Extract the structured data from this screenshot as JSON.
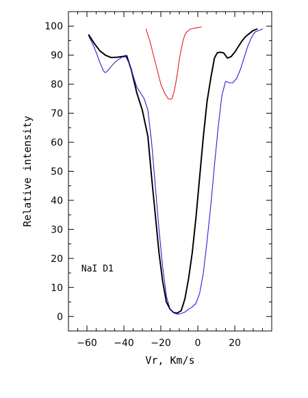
{
  "chart_data": {
    "type": "line",
    "title": "",
    "xlabel": "Vr, Km/s",
    "ylabel": "Relative intensity",
    "annotation": "NaI D1",
    "xlim": [
      -70,
      40
    ],
    "ylim": [
      -5,
      105
    ],
    "x_ticks": [
      -60,
      -40,
      -20,
      0,
      20
    ],
    "y_ticks": [
      0,
      10,
      20,
      30,
      40,
      50,
      60,
      70,
      80,
      90,
      100
    ],
    "grid": false,
    "series": [
      {
        "color": "#000000",
        "x": [
          -59,
          -56,
          -53,
          -50,
          -47,
          -44,
          -41,
          -38.5,
          -36,
          -33,
          -30,
          -27,
          -25,
          -23,
          -21,
          -19,
          -17,
          -15,
          -13,
          -11,
          -9,
          -7,
          -5,
          -3,
          -1,
          1,
          3,
          5,
          7,
          9,
          10.5,
          12,
          14,
          16,
          18,
          20,
          22,
          24,
          26,
          28,
          30,
          32
        ],
        "y": [
          97,
          94,
          91.5,
          90,
          89.2,
          89.3,
          89.5,
          89.8,
          85,
          77,
          71,
          62,
          48,
          35,
          22,
          12,
          5,
          2.5,
          1.3,
          1.2,
          2,
          6,
          13,
          22,
          34,
          48,
          62,
          74,
          82,
          89,
          90.8,
          91,
          90.8,
          89,
          89.5,
          91,
          93,
          95,
          96.5,
          97.5,
          98.5,
          99
        ]
      },
      {
        "color": "#1f1fd6",
        "x": [
          -59,
          -57,
          -55,
          -53,
          -51,
          -50,
          -49,
          -47,
          -45,
          -43,
          -41,
          -39,
          -37,
          -35,
          -33,
          -31,
          -29,
          -27,
          -25,
          -23,
          -21,
          -19,
          -17,
          -15,
          -13,
          -11,
          -9,
          -7,
          -5,
          -3,
          -1,
          1,
          3,
          5,
          7,
          9,
          11,
          13,
          15,
          17,
          19,
          21,
          23,
          25,
          27,
          29,
          31,
          33,
          35
        ],
        "y": [
          96.5,
          94,
          91,
          87.5,
          84.5,
          84,
          84.5,
          86,
          87.5,
          88.5,
          89.3,
          89.5,
          87,
          83,
          79,
          77,
          75,
          71,
          60,
          45,
          30,
          17,
          7,
          2.5,
          1.2,
          0.8,
          1,
          1.5,
          2.5,
          3.3,
          4.5,
          8,
          15,
          26,
          38,
          52,
          65,
          76,
          81,
          80.5,
          80.5,
          82,
          85,
          89,
          93,
          96,
          98,
          98.5,
          99
        ]
      },
      {
        "color": "#e11b1b",
        "x": [
          -28,
          -26,
          -24,
          -22,
          -20,
          -18,
          -16,
          -15,
          -14,
          -13,
          -12,
          -11,
          -10,
          -9,
          -8,
          -7,
          -6,
          -4,
          -2,
          0,
          2
        ],
        "y": [
          99,
          95,
          90,
          85,
          80,
          77,
          75,
          74.8,
          75,
          77,
          80,
          84,
          88.5,
          92,
          95,
          97,
          98,
          99,
          99.3,
          99.5,
          99.7
        ]
      }
    ]
  }
}
